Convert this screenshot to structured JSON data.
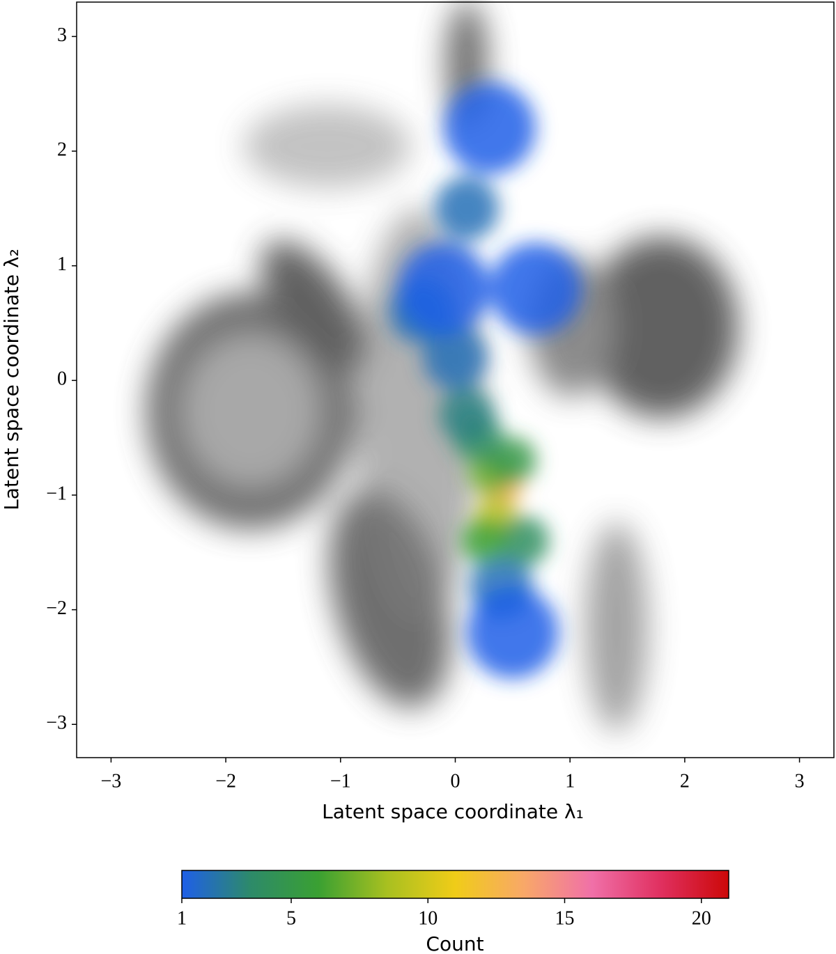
{
  "chart_data": {
    "type": "density",
    "x_label": "Latent space coordinate λ₁",
    "y_label": "Latent space coordinate λ₂",
    "xlim": [
      -3.3,
      3.3
    ],
    "ylim": [
      -3.29,
      3.3
    ],
    "xticks": [
      {
        "value": -3,
        "label": "−3"
      },
      {
        "value": -2,
        "label": "−2"
      },
      {
        "value": -1,
        "label": "−1"
      },
      0,
      1,
      2,
      3
    ],
    "yticks": [
      {
        "value": -3,
        "label": "−3"
      },
      {
        "value": -2,
        "label": "−2"
      },
      {
        "value": -1,
        "label": "−1"
      },
      0,
      1,
      2,
      3
    ],
    "x": [
      0.4,
      0.35,
      0.3,
      0.5,
      0.2,
      0.1,
      0.0,
      -0.3,
      0.1,
      0.3,
      0.7,
      0.4,
      0.5,
      -0.1,
      0.6,
      0.25
    ],
    "y": [
      -0.95,
      -1.2,
      -0.8,
      -0.7,
      -0.5,
      -0.3,
      0.2,
      0.6,
      1.5,
      2.2,
      0.8,
      -1.8,
      -2.2,
      0.8,
      -1.4,
      -1.4
    ],
    "values": [
      13,
      9,
      7,
      5,
      4,
      3,
      2,
      2,
      2,
      1,
      1,
      2,
      1,
      1,
      4,
      6
    ],
    "colorbar": {
      "label": "Count",
      "clim": [
        1,
        21
      ],
      "ticks": [
        1,
        5,
        10,
        15,
        20
      ],
      "colormap": [
        "#1f5fe8",
        "#2d8a6a",
        "#3aa032",
        "#a8c020",
        "#f0cc18",
        "#f8a868",
        "#f070a8",
        "#e03060",
        "#cc0808"
      ]
    }
  }
}
